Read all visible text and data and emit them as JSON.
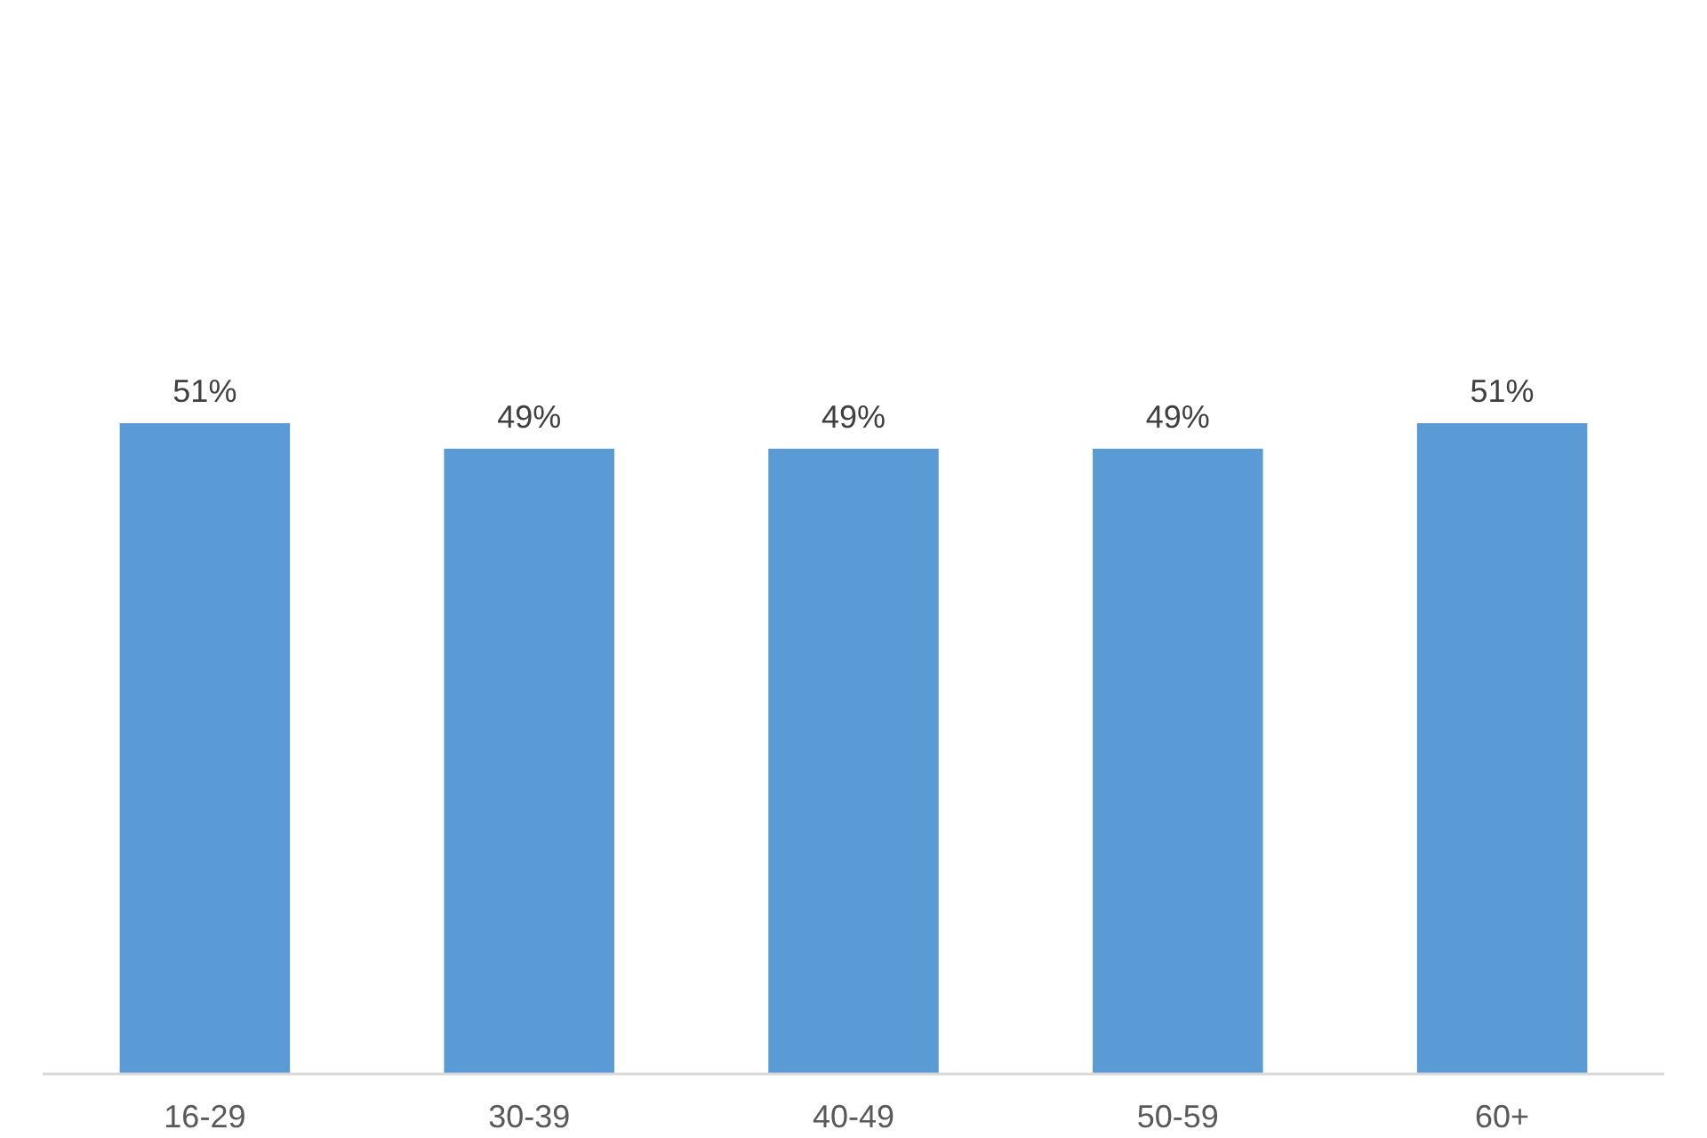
{
  "chart_data": {
    "type": "bar",
    "categories": [
      "16-29",
      "30-39",
      "40-49",
      "50-59",
      "60+"
    ],
    "values": [
      51,
      49,
      49,
      49,
      51
    ],
    "value_labels": [
      "51%",
      "49%",
      "49%",
      "49%",
      "51%"
    ],
    "color": "#5b9bd5"
  }
}
